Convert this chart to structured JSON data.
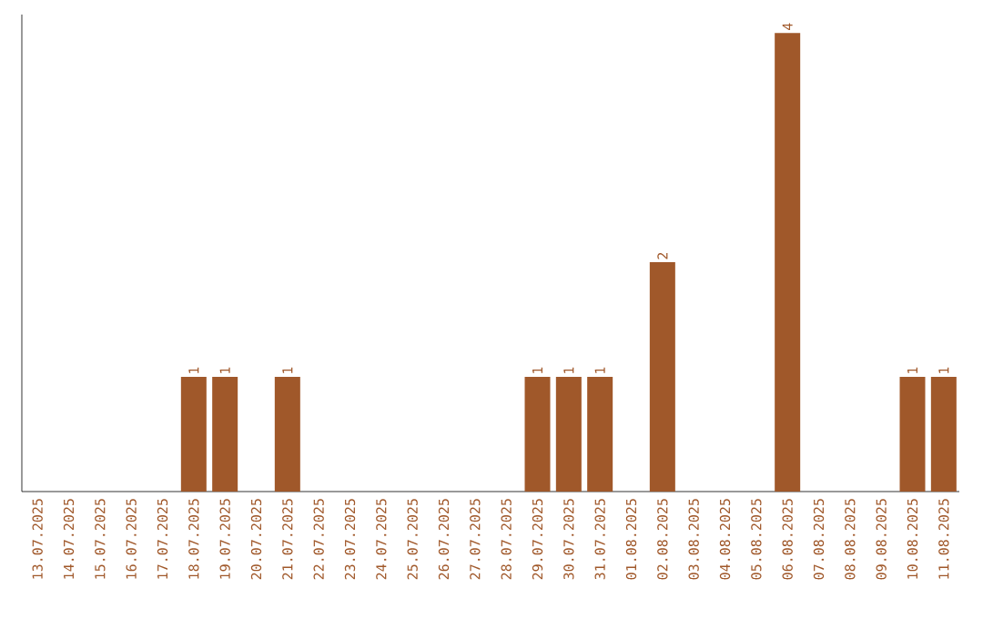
{
  "chart_data": {
    "type": "bar",
    "categories": [
      "13.07.2025",
      "14.07.2025",
      "15.07.2025",
      "16.07.2025",
      "17.07.2025",
      "18.07.2025",
      "19.07.2025",
      "20.07.2025",
      "21.07.2025",
      "22.07.2025",
      "23.07.2025",
      "24.07.2025",
      "25.07.2025",
      "26.07.2025",
      "27.07.2025",
      "28.07.2025",
      "29.07.2025",
      "30.07.2025",
      "31.07.2025",
      "01.08.2025",
      "02.08.2025",
      "03.08.2025",
      "04.08.2025",
      "05.08.2025",
      "06.08.2025",
      "07.08.2025",
      "08.08.2025",
      "09.08.2025",
      "10.08.2025",
      "11.08.2025"
    ],
    "values": [
      0,
      0,
      0,
      0,
      0,
      1,
      1,
      0,
      1,
      0,
      0,
      0,
      0,
      0,
      0,
      0,
      1,
      1,
      1,
      0,
      2,
      0,
      0,
      0,
      4,
      0,
      0,
      0,
      1,
      1
    ],
    "value_labels": [
      null,
      null,
      null,
      null,
      null,
      "1",
      "1",
      null,
      "1",
      null,
      null,
      null,
      null,
      null,
      null,
      null,
      "1",
      "1",
      "1",
      null,
      "2",
      null,
      null,
      null,
      "4",
      null,
      null,
      null,
      "1",
      "1"
    ],
    "color": "#a0582a",
    "tick_labels": "x"
  }
}
